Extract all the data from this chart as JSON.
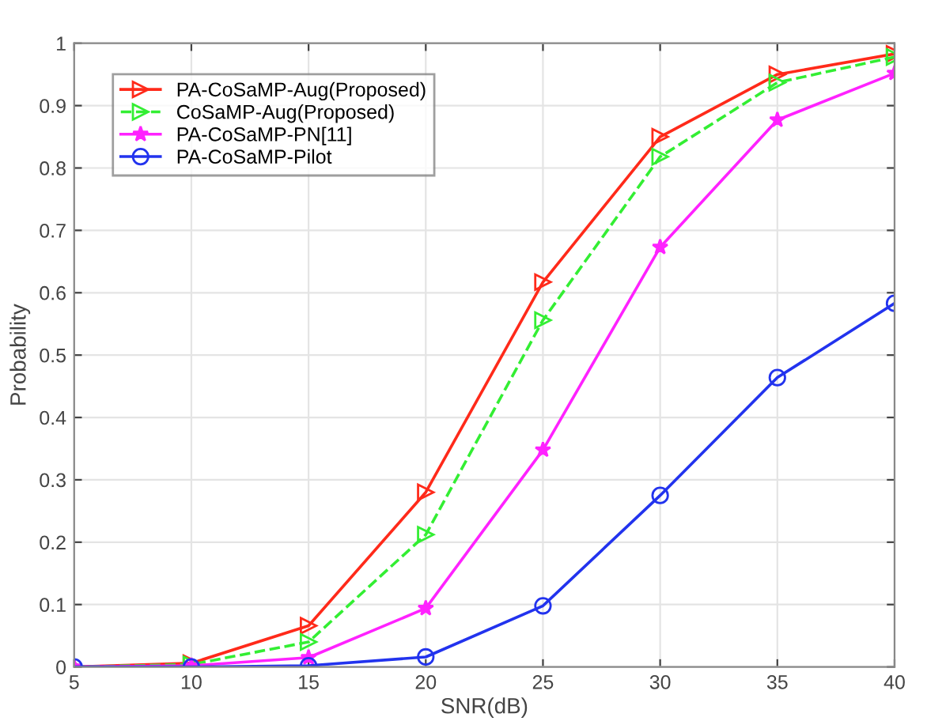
{
  "chart_data": {
    "type": "line",
    "xlabel": "SNR(dB)",
    "ylabel": "Probability",
    "x": [
      5,
      10,
      15,
      20,
      25,
      30,
      35,
      40
    ],
    "series": [
      {
        "name": "PA-CoSaMP-Aug(Proposed)",
        "color": "#ff2a1a",
        "marker": "triangle",
        "line_style": "solid",
        "values": [
          0,
          0.006,
          0.066,
          0.28,
          0.617,
          0.85,
          0.95,
          0.983
        ]
      },
      {
        "name": "CoSaMP-Aug(Proposed)",
        "color": "#33ee33",
        "marker": "triangle",
        "line_style": "dashed",
        "values": [
          0,
          0.004,
          0.04,
          0.212,
          0.556,
          0.818,
          0.937,
          0.978
        ]
      },
      {
        "name": "PA-CoSaMP-PN[11]",
        "color": "#ff22ff",
        "marker": "star",
        "line_style": "solid",
        "values": [
          0,
          0.002,
          0.015,
          0.094,
          0.348,
          0.673,
          0.877,
          0.952
        ]
      },
      {
        "name": "PA-CoSaMP-Pilot",
        "color": "#2233ee",
        "marker": "circle",
        "line_style": "solid",
        "values": [
          0,
          0,
          0.002,
          0.016,
          0.098,
          0.275,
          0.464,
          0.583
        ]
      }
    ],
    "xlim": [
      5,
      40
    ],
    "xticks": [
      5,
      10,
      15,
      20,
      25,
      30,
      35,
      40
    ],
    "ylim": [
      0,
      1
    ],
    "yticks": [
      0,
      0.1,
      0.2,
      0.3,
      0.4,
      0.5,
      0.6,
      0.7,
      0.8,
      0.9,
      1
    ],
    "grid": true,
    "legend": "top left"
  }
}
